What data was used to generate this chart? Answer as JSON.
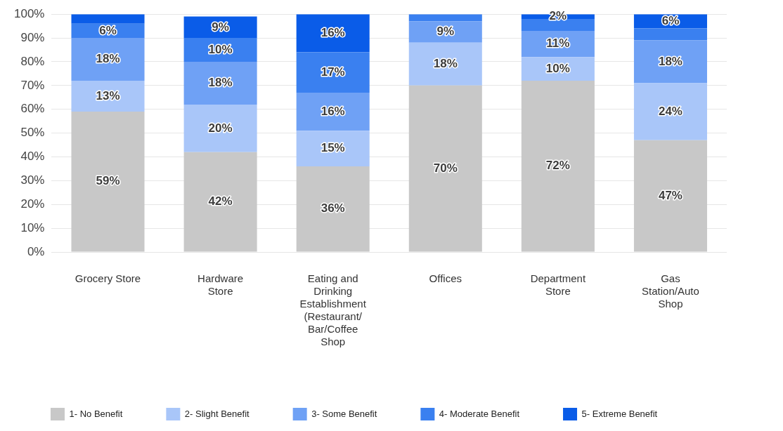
{
  "chart_data": {
    "type": "bar",
    "stacked": true,
    "categories": [
      "Grocery Store",
      "Hardware Store",
      "Eating and Drinking Establishment (Restaurant/Bar/Coffee Shop",
      "Offices",
      "Department Store",
      "Gas Station/Auto Shop"
    ],
    "series": [
      {
        "name": "1- No Benefit",
        "color": "#c8c8c8",
        "values": [
          59,
          42,
          36,
          70,
          72,
          47
        ],
        "value_labels": [
          "59%",
          "42%",
          "36%",
          "70%",
          "72%",
          "47%"
        ]
      },
      {
        "name": "2- Slight Benefit",
        "color": "#a9c6f9",
        "values": [
          13,
          20,
          15,
          18,
          10,
          24
        ],
        "value_labels": [
          "13%",
          "20%",
          "15%",
          "18%",
          "10%",
          "24%"
        ]
      },
      {
        "name": "3- Some Benefit",
        "color": "#6fa1f5",
        "values": [
          18,
          18,
          16,
          9,
          11,
          18
        ],
        "value_labels": [
          "18%",
          "18%",
          "16%",
          "9%",
          "11%",
          "18%"
        ]
      },
      {
        "name": "4- Moderate Benefit",
        "color": "#3a80f0",
        "values": [
          6,
          10,
          17,
          3,
          5,
          5
        ],
        "value_labels": [
          "6%",
          "10%",
          "17%",
          null,
          null,
          null
        ]
      },
      {
        "name": "5- Extreme Benefit",
        "color": "#0a5ce8",
        "values": [
          4,
          9,
          16,
          0,
          2,
          6
        ],
        "value_labels": [
          null,
          "9%",
          "16%",
          null,
          "2%",
          "6%"
        ]
      }
    ],
    "ylim": [
      0,
      100
    ],
    "yticks": [
      {
        "value": 0,
        "label": "0%"
      },
      {
        "value": 10,
        "label": "10%"
      },
      {
        "value": 20,
        "label": "20%"
      },
      {
        "value": 30,
        "label": "30%"
      },
      {
        "value": 40,
        "label": "40%"
      },
      {
        "value": 50,
        "label": "50%"
      },
      {
        "value": 60,
        "label": "60%"
      },
      {
        "value": 70,
        "label": "70%"
      },
      {
        "value": 80,
        "label": "80%"
      },
      {
        "value": 90,
        "label": "90%"
      },
      {
        "value": 100,
        "label": "100%"
      }
    ],
    "grid": "y",
    "legend": "bottom"
  }
}
